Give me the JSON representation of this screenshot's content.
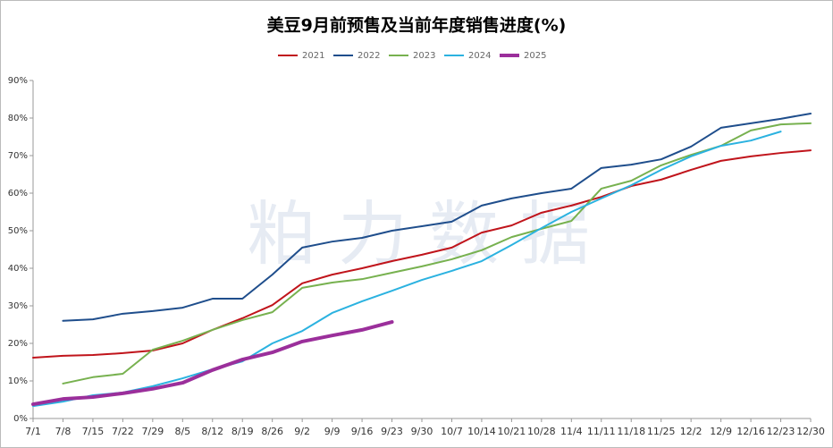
{
  "chart_data": {
    "type": "line",
    "title": "美豆9月前预售及当前年度销售进度(%)",
    "watermark": "粕力数据",
    "categories": [
      "7/1",
      "7/8",
      "7/15",
      "7/22",
      "7/29",
      "8/5",
      "8/12",
      "8/19",
      "8/26",
      "9/2",
      "9/9",
      "9/16",
      "9/23",
      "9/30",
      "10/7",
      "10/14",
      "10/21",
      "10/28",
      "11/4",
      "11/11",
      "11/18",
      "11/25",
      "12/2",
      "12/9",
      "12/16",
      "12/23",
      "12/30"
    ],
    "ylim": [
      0,
      90
    ],
    "yticks": [
      {
        "value": 0,
        "label": "0%"
      },
      {
        "value": 10,
        "label": "10%"
      },
      {
        "value": 20,
        "label": "20%"
      },
      {
        "value": 30,
        "label": "30%"
      },
      {
        "value": 40,
        "label": "40%"
      },
      {
        "value": 50,
        "label": "50%"
      },
      {
        "value": 60,
        "label": "60%"
      },
      {
        "value": 70,
        "label": "70%"
      },
      {
        "value": 80,
        "label": "80%"
      },
      {
        "value": 90,
        "label": "90%"
      }
    ],
    "grid": false,
    "legend": "top",
    "series": [
      {
        "name": "2021",
        "color": "#c0141b",
        "line_width": 2,
        "values": [
          16.2,
          16.7,
          16.9,
          17.4,
          18.1,
          20,
          23.6,
          26.7,
          30.2,
          36,
          38.3,
          40,
          41.9,
          43.6,
          45.5,
          49.5,
          51.4,
          54.8,
          56.7,
          59,
          61.9,
          63.6,
          66.2,
          68.6,
          69.8,
          70.7,
          71.4
        ]
      },
      {
        "name": "2022",
        "color": "#1f4e8c",
        "line_width": 2,
        "values": [
          null,
          26,
          26.4,
          27.9,
          28.6,
          29.5,
          31.9,
          31.9,
          38.3,
          45.5,
          47.1,
          48.1,
          50,
          51.2,
          52.4,
          56.7,
          58.6,
          60,
          61.2,
          66.7,
          67.6,
          69,
          72.4,
          77.4,
          78.6,
          79.8,
          81.2
        ]
      },
      {
        "name": "2023",
        "color": "#77b14f",
        "line_width": 2,
        "values": [
          null,
          9.3,
          11,
          11.9,
          18.3,
          20.7,
          23.6,
          26.2,
          28.3,
          34.8,
          36.2,
          37.1,
          38.8,
          40.5,
          42.4,
          44.8,
          48.3,
          50.5,
          52.6,
          61.2,
          63.3,
          67.4,
          70.2,
          72.6,
          76.7,
          78.3,
          78.6
        ]
      },
      {
        "name": "2024",
        "color": "#2bb2e0",
        "line_width": 2,
        "values": [
          3.3,
          4.5,
          6.2,
          6.9,
          8.6,
          10.7,
          13.1,
          15.2,
          20,
          23.3,
          28.1,
          31.2,
          34,
          36.9,
          39.3,
          41.9,
          46.2,
          50.7,
          55,
          58.6,
          62.1,
          66.2,
          69.8,
          72.6,
          74,
          76.4,
          null
        ]
      },
      {
        "name": "2025",
        "color": "#9b2f9b",
        "line_width": 4,
        "values": [
          3.8,
          5.2,
          5.7,
          6.7,
          7.9,
          9.5,
          12.9,
          15.7,
          17.6,
          20.5,
          22.1,
          23.6,
          25.7,
          null,
          null,
          null,
          null,
          null,
          null,
          null,
          null,
          null,
          null,
          null,
          null,
          null,
          null
        ]
      }
    ]
  }
}
